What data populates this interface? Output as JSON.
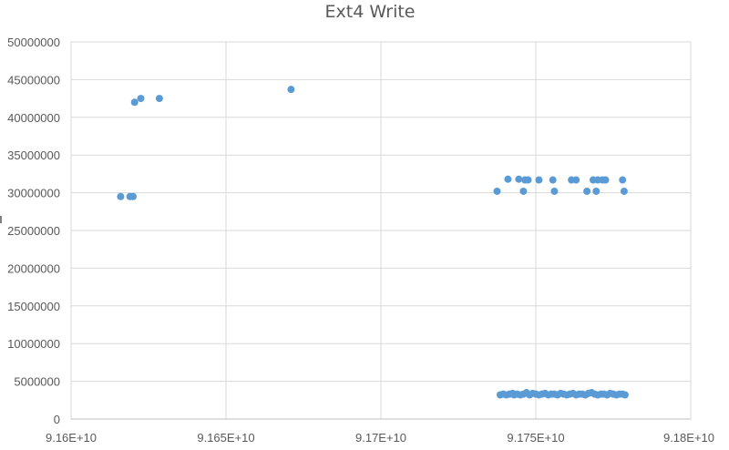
{
  "chart_data": {
    "type": "scatter",
    "title": "Ext4 Write",
    "xlabel": "",
    "ylabel": "",
    "xlim": [
      91600000000,
      91800000000
    ],
    "ylim": [
      0,
      50000000
    ],
    "grid": true,
    "legend": "none",
    "marker_color": "#5b9bd5",
    "x_ticks": [
      91600000000,
      91650000000,
      91700000000,
      91750000000,
      91800000000
    ],
    "x_tick_labels": [
      "9.16E+10",
      "9.165E+10",
      "9.17E+10",
      "9.175E+10",
      "9.18E+10"
    ],
    "y_ticks": [
      0,
      5000000,
      10000000,
      15000000,
      20000000,
      25000000,
      30000000,
      35000000,
      40000000,
      45000000,
      50000000
    ],
    "y_tick_labels": [
      "0",
      "5000000",
      "10000000",
      "15000000",
      "20000000",
      "25000000",
      "30000000",
      "35000000",
      "40000000",
      "45000000",
      "50000000"
    ],
    "series": [
      {
        "points": [
          [
            91616000000,
            29500000
          ],
          [
            91619000000,
            29500000
          ],
          [
            91620000000,
            29500000
          ],
          [
            91620500000,
            42000000
          ],
          [
            91622500000,
            42500000
          ],
          [
            91628500000,
            42500000
          ],
          [
            91671000000,
            43700000
          ],
          [
            91737500000,
            30200000
          ],
          [
            91741000000,
            31800000
          ],
          [
            91744500000,
            31800000
          ],
          [
            91746000000,
            30200000
          ],
          [
            91746500000,
            31700000
          ],
          [
            91747500000,
            31700000
          ],
          [
            91751000000,
            31700000
          ],
          [
            91755500000,
            31700000
          ],
          [
            91756000000,
            30200000
          ],
          [
            91761500000,
            31700000
          ],
          [
            91763000000,
            31700000
          ],
          [
            91766500000,
            30200000
          ],
          [
            91768500000,
            31700000
          ],
          [
            91769500000,
            30200000
          ],
          [
            91770000000,
            31700000
          ],
          [
            91771500000,
            31700000
          ],
          [
            91772500000,
            31700000
          ],
          [
            91778000000,
            31700000
          ],
          [
            91778500000,
            30200000
          ],
          [
            91738500000,
            3200000
          ],
          [
            91739500000,
            3300000
          ],
          [
            91740500000,
            3200000
          ],
          [
            91741500000,
            3300000
          ],
          [
            91742500000,
            3400000
          ],
          [
            91743000000,
            3200000
          ],
          [
            91744000000,
            3300000
          ],
          [
            91745000000,
            3200000
          ],
          [
            91746000000,
            3300000
          ],
          [
            91747000000,
            3500000
          ],
          [
            91748000000,
            3200000
          ],
          [
            91749000000,
            3400000
          ],
          [
            91750000000,
            3300000
          ],
          [
            91751000000,
            3200000
          ],
          [
            91752000000,
            3300000
          ],
          [
            91753000000,
            3400000
          ],
          [
            91754000000,
            3200000
          ],
          [
            91755000000,
            3300000
          ],
          [
            91756000000,
            3300000
          ],
          [
            91757000000,
            3200000
          ],
          [
            91758000000,
            3400000
          ],
          [
            91759000000,
            3300000
          ],
          [
            91760000000,
            3200000
          ],
          [
            91761000000,
            3300000
          ],
          [
            91762000000,
            3400000
          ],
          [
            91763000000,
            3200000
          ],
          [
            91764000000,
            3300000
          ],
          [
            91765000000,
            3300000
          ],
          [
            91766000000,
            3200000
          ],
          [
            91767000000,
            3400000
          ],
          [
            91768000000,
            3500000
          ],
          [
            91769000000,
            3300000
          ],
          [
            91770000000,
            3200000
          ],
          [
            91771000000,
            3300000
          ],
          [
            91772000000,
            3300000
          ],
          [
            91773000000,
            3200000
          ],
          [
            91774000000,
            3400000
          ],
          [
            91775000000,
            3300000
          ],
          [
            91776000000,
            3200000
          ],
          [
            91777000000,
            3300000
          ],
          [
            91778000000,
            3300000
          ],
          [
            91778800000,
            3200000
          ]
        ]
      }
    ]
  }
}
